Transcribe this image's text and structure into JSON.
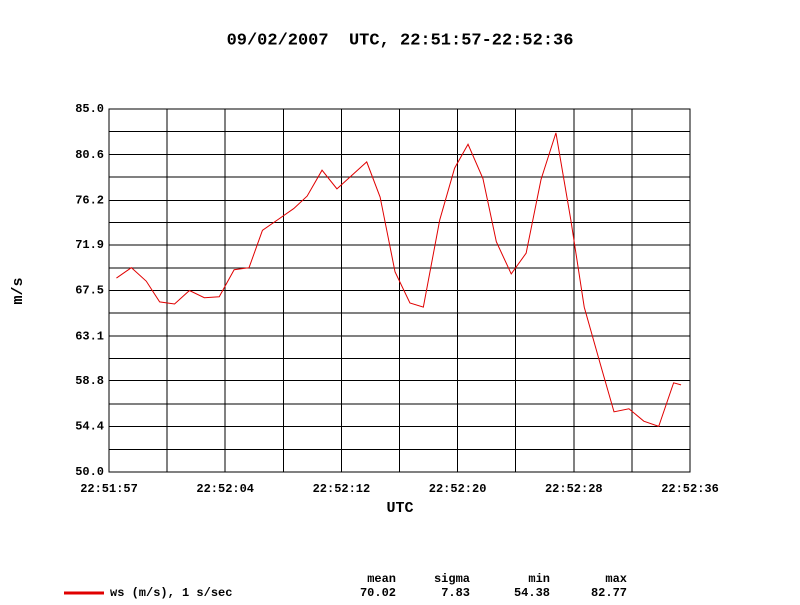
{
  "chart_data": {
    "type": "line",
    "title": "09/02/2007  UTC, 22:51:57-22:52:36",
    "xlabel": "UTC",
    "ylabel": "m/s",
    "x": [
      0.5,
      1.5,
      2.5,
      3.4,
      4.4,
      5.4,
      6.4,
      7.4,
      8.4,
      9.4,
      10.3,
      11.3,
      12.4,
      13.3,
      14.3,
      15.3,
      16.3,
      17.3,
      18.2,
      19.2,
      20.2,
      21.1,
      22.2,
      23.2,
      24.1,
      25.1,
      26.0,
      27.0,
      28.0,
      29.0,
      30.0,
      31.0,
      31.9,
      33.0,
      33.9,
      34.9,
      35.9,
      36.9,
      37.9,
      38.4
    ],
    "series": [
      {
        "name": "ws (m/s), 1 s/sec",
        "color": "#e00000",
        "values": [
          68.7,
          69.7,
          68.4,
          66.4,
          66.2,
          67.5,
          66.8,
          66.9,
          69.5,
          69.7,
          73.3,
          74.3,
          75.4,
          76.6,
          79.1,
          77.3,
          78.6,
          79.9,
          76.5,
          69.3,
          66.3,
          65.9,
          74.3,
          79.3,
          81.6,
          78.3,
          72.2,
          69.1,
          71.1,
          78.2,
          82.7,
          74.3,
          65.9,
          60.3,
          55.8,
          56.1,
          54.9,
          54.4,
          58.6,
          58.4
        ],
        "stats": [
          {
            "label": "mean",
            "value": 70.02
          },
          {
            "label": "sigma",
            "value": 7.83
          },
          {
            "label": "min",
            "value": 54.38
          },
          {
            "label": "max",
            "value": 82.77
          }
        ]
      }
    ],
    "xlim": [
      0,
      39
    ],
    "xticks": [
      {
        "value": 0,
        "label": "22:51:57"
      },
      {
        "value": 7.8,
        "label": "22:52:04"
      },
      {
        "value": 15.6,
        "label": "22:52:12"
      },
      {
        "value": 23.4,
        "label": "22:52:20"
      },
      {
        "value": 31.2,
        "label": "22:52:28"
      },
      {
        "value": 39,
        "label": "22:52:36"
      }
    ],
    "xminor": [
      3.9,
      11.7,
      19.5,
      27.3,
      35.1
    ],
    "ylim": [
      50,
      85
    ],
    "yticks": [
      {
        "value": 50,
        "label": "50.0"
      },
      54.4,
      58.8,
      63.1,
      67.5,
      71.9,
      76.2,
      80.6,
      {
        "value": 85,
        "label": "85.0"
      }
    ],
    "yminor": [
      52.19,
      56.56,
      60.94,
      65.31,
      69.69,
      74.06,
      78.44,
      82.81
    ],
    "grid": true
  }
}
